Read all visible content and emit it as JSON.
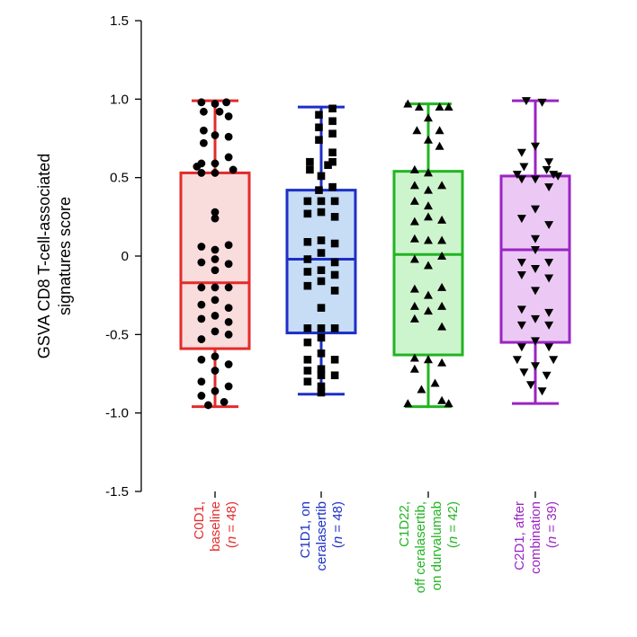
{
  "chart_data": {
    "type": "box",
    "ylabel_lines": [
      "GSVA CD8 T-cell-associated",
      "signatures score"
    ],
    "ylim": [
      -1.5,
      1.5
    ],
    "yticks": [
      {
        "value": 1.5,
        "label": "1.5"
      },
      {
        "value": 1.0,
        "label": "1.0"
      },
      {
        "value": 0.5,
        "label": "0.5"
      },
      {
        "value": 0,
        "label": "0"
      },
      {
        "value": -0.5,
        "label": "-0.5"
      },
      {
        "value": -1.0,
        "label": "-1.0"
      },
      {
        "value": -1.5,
        "label": "-1.5"
      }
    ],
    "groups": [
      {
        "name": "C0D1, baseline (n = 48)",
        "label_lines": [
          {
            "pre": "C0D1,",
            "italic": "",
            "post": ""
          },
          {
            "pre": "baseline",
            "italic": "",
            "post": ""
          },
          {
            "pre": "(",
            "italic": "n",
            "post": " = 48)"
          }
        ],
        "color": "#e32b2b",
        "fill": "#f9dcdc",
        "marker": "circle",
        "whisker_low": -0.96,
        "q1": -0.59,
        "median": -0.17,
        "q3": 0.53,
        "whisker_high": 0.99,
        "points": [
          [
            -0.06,
            0.98
          ],
          [
            0.0,
            0.97
          ],
          [
            0.05,
            0.98
          ],
          [
            -0.05,
            0.92
          ],
          [
            0.02,
            0.92
          ],
          [
            0.06,
            0.89
          ],
          [
            -0.05,
            0.8
          ],
          [
            0.0,
            0.77
          ],
          [
            0.06,
            0.76
          ],
          [
            -0.05,
            0.72
          ],
          [
            0.06,
            0.63
          ],
          [
            -0.06,
            0.59
          ],
          [
            0.0,
            0.59
          ],
          [
            -0.08,
            0.57
          ],
          [
            0.08,
            0.55
          ],
          [
            -0.06,
            0.53
          ],
          [
            0.0,
            0.53
          ],
          [
            0.0,
            0.28
          ],
          [
            0.0,
            0.24
          ],
          [
            -0.06,
            0.06
          ],
          [
            0.06,
            0.07
          ],
          [
            0.0,
            0.04
          ],
          [
            0.0,
            -0.02
          ],
          [
            -0.06,
            -0.04
          ],
          [
            0.06,
            -0.05
          ],
          [
            0.0,
            -0.09
          ],
          [
            -0.06,
            -0.2
          ],
          [
            0.0,
            -0.2
          ],
          [
            0.06,
            -0.2
          ],
          [
            0.0,
            -0.28
          ],
          [
            -0.06,
            -0.31
          ],
          [
            0.06,
            -0.33
          ],
          [
            0.0,
            -0.38
          ],
          [
            -0.06,
            -0.4
          ],
          [
            0.06,
            -0.42
          ],
          [
            0.0,
            -0.48
          ],
          [
            -0.06,
            -0.53
          ],
          [
            0.06,
            -0.5
          ],
          [
            0.0,
            -0.64
          ],
          [
            -0.06,
            -0.66
          ],
          [
            0.06,
            -0.69
          ],
          [
            0.0,
            -0.73
          ],
          [
            -0.06,
            -0.8
          ],
          [
            0.06,
            -0.83
          ],
          [
            0.0,
            -0.86
          ],
          [
            -0.06,
            -0.89
          ],
          [
            0.04,
            -0.93
          ],
          [
            -0.03,
            -0.95
          ]
        ]
      },
      {
        "name": "C1D1, on ceralasertib (n = 48)",
        "label_lines": [
          {
            "pre": "C1D1, on",
            "italic": "",
            "post": ""
          },
          {
            "pre": "ceralasertib",
            "italic": "",
            "post": ""
          },
          {
            "pre": "(",
            "italic": "n",
            "post": " = 48)"
          }
        ],
        "color": "#1c2fc7",
        "fill": "#c7dcf5",
        "marker": "square",
        "whisker_low": -0.88,
        "q1": -0.49,
        "median": -0.02,
        "q3": 0.42,
        "whisker_high": 0.95,
        "points": [
          [
            0.05,
            0.94
          ],
          [
            -0.01,
            0.9
          ],
          [
            0.05,
            0.86
          ],
          [
            -0.01,
            0.82
          ],
          [
            0.05,
            0.78
          ],
          [
            -0.01,
            0.74
          ],
          [
            0.05,
            0.66
          ],
          [
            -0.05,
            0.6
          ],
          [
            0.05,
            0.6
          ],
          [
            0.03,
            0.58
          ],
          [
            -0.05,
            0.55
          ],
          [
            0.0,
            0.51
          ],
          [
            0.05,
            0.44
          ],
          [
            -0.01,
            0.42
          ],
          [
            -0.06,
            0.35
          ],
          [
            0.0,
            0.35
          ],
          [
            0.06,
            0.35
          ],
          [
            0.0,
            0.28
          ],
          [
            -0.06,
            0.27
          ],
          [
            0.06,
            0.25
          ],
          [
            0.0,
            0.1
          ],
          [
            -0.06,
            0.09
          ],
          [
            0.06,
            0.08
          ],
          [
            0.0,
            0.02
          ],
          [
            -0.06,
            -0.02
          ],
          [
            0.06,
            -0.04
          ],
          [
            0.0,
            -0.09
          ],
          [
            -0.06,
            -0.1
          ],
          [
            0.06,
            -0.12
          ],
          [
            0.0,
            -0.16
          ],
          [
            -0.06,
            -0.19
          ],
          [
            0.06,
            -0.22
          ],
          [
            0.0,
            -0.33
          ],
          [
            -0.06,
            -0.46
          ],
          [
            0.0,
            -0.46
          ],
          [
            0.06,
            -0.46
          ],
          [
            -0.06,
            -0.55
          ],
          [
            0.0,
            -0.52
          ],
          [
            -0.06,
            -0.66
          ],
          [
            0.0,
            -0.62
          ],
          [
            0.06,
            -0.66
          ],
          [
            -0.06,
            -0.73
          ],
          [
            0.0,
            -0.72
          ],
          [
            -0.06,
            -0.8
          ],
          [
            0.0,
            -0.76
          ],
          [
            0.06,
            -0.76
          ],
          [
            0.0,
            -0.83
          ],
          [
            0.0,
            -0.87
          ]
        ]
      },
      {
        "name": "C1D22, off ceralasertib, on durvalumab (n = 42)",
        "label_lines": [
          {
            "pre": "C1D22,",
            "italic": "",
            "post": ""
          },
          {
            "pre": "off ceralasertib,",
            "italic": "",
            "post": ""
          },
          {
            "pre": "on durvalumab",
            "italic": "",
            "post": ""
          },
          {
            "pre": "(",
            "italic": "n",
            "post": " = 42)"
          }
        ],
        "color": "#22b422",
        "fill": "#cdf5cd",
        "marker": "triangle-up",
        "whisker_low": -0.96,
        "q1": -0.63,
        "median": 0.01,
        "q3": 0.54,
        "whisker_high": 0.97,
        "points": [
          [
            -0.09,
            0.97
          ],
          [
            -0.04,
            0.95
          ],
          [
            0.05,
            0.95
          ],
          [
            0.09,
            0.95
          ],
          [
            0.0,
            0.88
          ],
          [
            -0.05,
            0.8
          ],
          [
            0.05,
            0.8
          ],
          [
            0.0,
            0.74
          ],
          [
            0.05,
            0.7
          ],
          [
            -0.06,
            0.55
          ],
          [
            0.0,
            0.53
          ],
          [
            -0.06,
            0.45
          ],
          [
            0.06,
            0.45
          ],
          [
            0.0,
            0.42
          ],
          [
            -0.06,
            0.35
          ],
          [
            0.0,
            0.32
          ],
          [
            -0.06,
            0.22
          ],
          [
            0.0,
            0.25
          ],
          [
            0.06,
            0.23
          ],
          [
            -0.06,
            0.11
          ],
          [
            0.0,
            0.1
          ],
          [
            0.06,
            0.1
          ],
          [
            -0.06,
            -0.02
          ],
          [
            0.06,
            0.0
          ],
          [
            0.0,
            -0.06
          ],
          [
            -0.06,
            -0.21
          ],
          [
            0.06,
            -0.2
          ],
          [
            0.0,
            -0.25
          ],
          [
            -0.06,
            -0.32
          ],
          [
            0.06,
            -0.32
          ],
          [
            0.0,
            -0.35
          ],
          [
            -0.06,
            -0.4
          ],
          [
            0.06,
            -0.45
          ],
          [
            -0.06,
            -0.65
          ],
          [
            0.0,
            -0.66
          ],
          [
            0.06,
            -0.68
          ],
          [
            -0.06,
            -0.72
          ],
          [
            0.03,
            -0.81
          ],
          [
            -0.03,
            -0.85
          ],
          [
            0.06,
            -0.92
          ],
          [
            -0.09,
            -0.94
          ],
          [
            0.09,
            -0.94
          ]
        ]
      },
      {
        "name": "C2D1, after combination (n = 39)",
        "label_lines": [
          {
            "pre": "C2D1, after",
            "italic": "",
            "post": ""
          },
          {
            "pre": "combination",
            "italic": "",
            "post": ""
          },
          {
            "pre": "(",
            "italic": "n",
            "post": " = 39)"
          }
        ],
        "color": "#9a25c2",
        "fill": "#ecc9f5",
        "marker": "triangle-down",
        "whisker_low": -0.94,
        "q1": -0.55,
        "median": 0.04,
        "q3": 0.51,
        "whisker_high": 0.99,
        "points": [
          [
            -0.04,
            0.99
          ],
          [
            0.03,
            0.98
          ],
          [
            0.0,
            0.7
          ],
          [
            -0.06,
            0.66
          ],
          [
            0.06,
            0.6
          ],
          [
            -0.05,
            0.57
          ],
          [
            0.05,
            0.55
          ],
          [
            -0.08,
            0.52
          ],
          [
            0.08,
            0.52
          ],
          [
            0.1,
            0.51
          ],
          [
            -0.06,
            0.49
          ],
          [
            0.0,
            0.49
          ],
          [
            0.06,
            0.44
          ],
          [
            0.0,
            0.3
          ],
          [
            -0.06,
            0.24
          ],
          [
            0.06,
            0.2
          ],
          [
            0.0,
            0.11
          ],
          [
            0.0,
            0.04
          ],
          [
            -0.06,
            -0.04
          ],
          [
            0.06,
            -0.04
          ],
          [
            0.0,
            -0.08
          ],
          [
            -0.06,
            -0.12
          ],
          [
            0.06,
            -0.14
          ],
          [
            0.0,
            -0.22
          ],
          [
            -0.06,
            -0.34
          ],
          [
            0.06,
            -0.36
          ],
          [
            0.0,
            -0.4
          ],
          [
            -0.06,
            -0.44
          ],
          [
            0.06,
            -0.44
          ],
          [
            0.0,
            -0.54
          ],
          [
            -0.06,
            -0.58
          ],
          [
            0.06,
            -0.58
          ],
          [
            -0.08,
            -0.66
          ],
          [
            0.08,
            -0.66
          ],
          [
            0.0,
            -0.7
          ],
          [
            -0.05,
            -0.74
          ],
          [
            0.05,
            -0.76
          ],
          [
            -0.02,
            -0.82
          ],
          [
            0.03,
            -0.86
          ]
        ]
      }
    ]
  }
}
